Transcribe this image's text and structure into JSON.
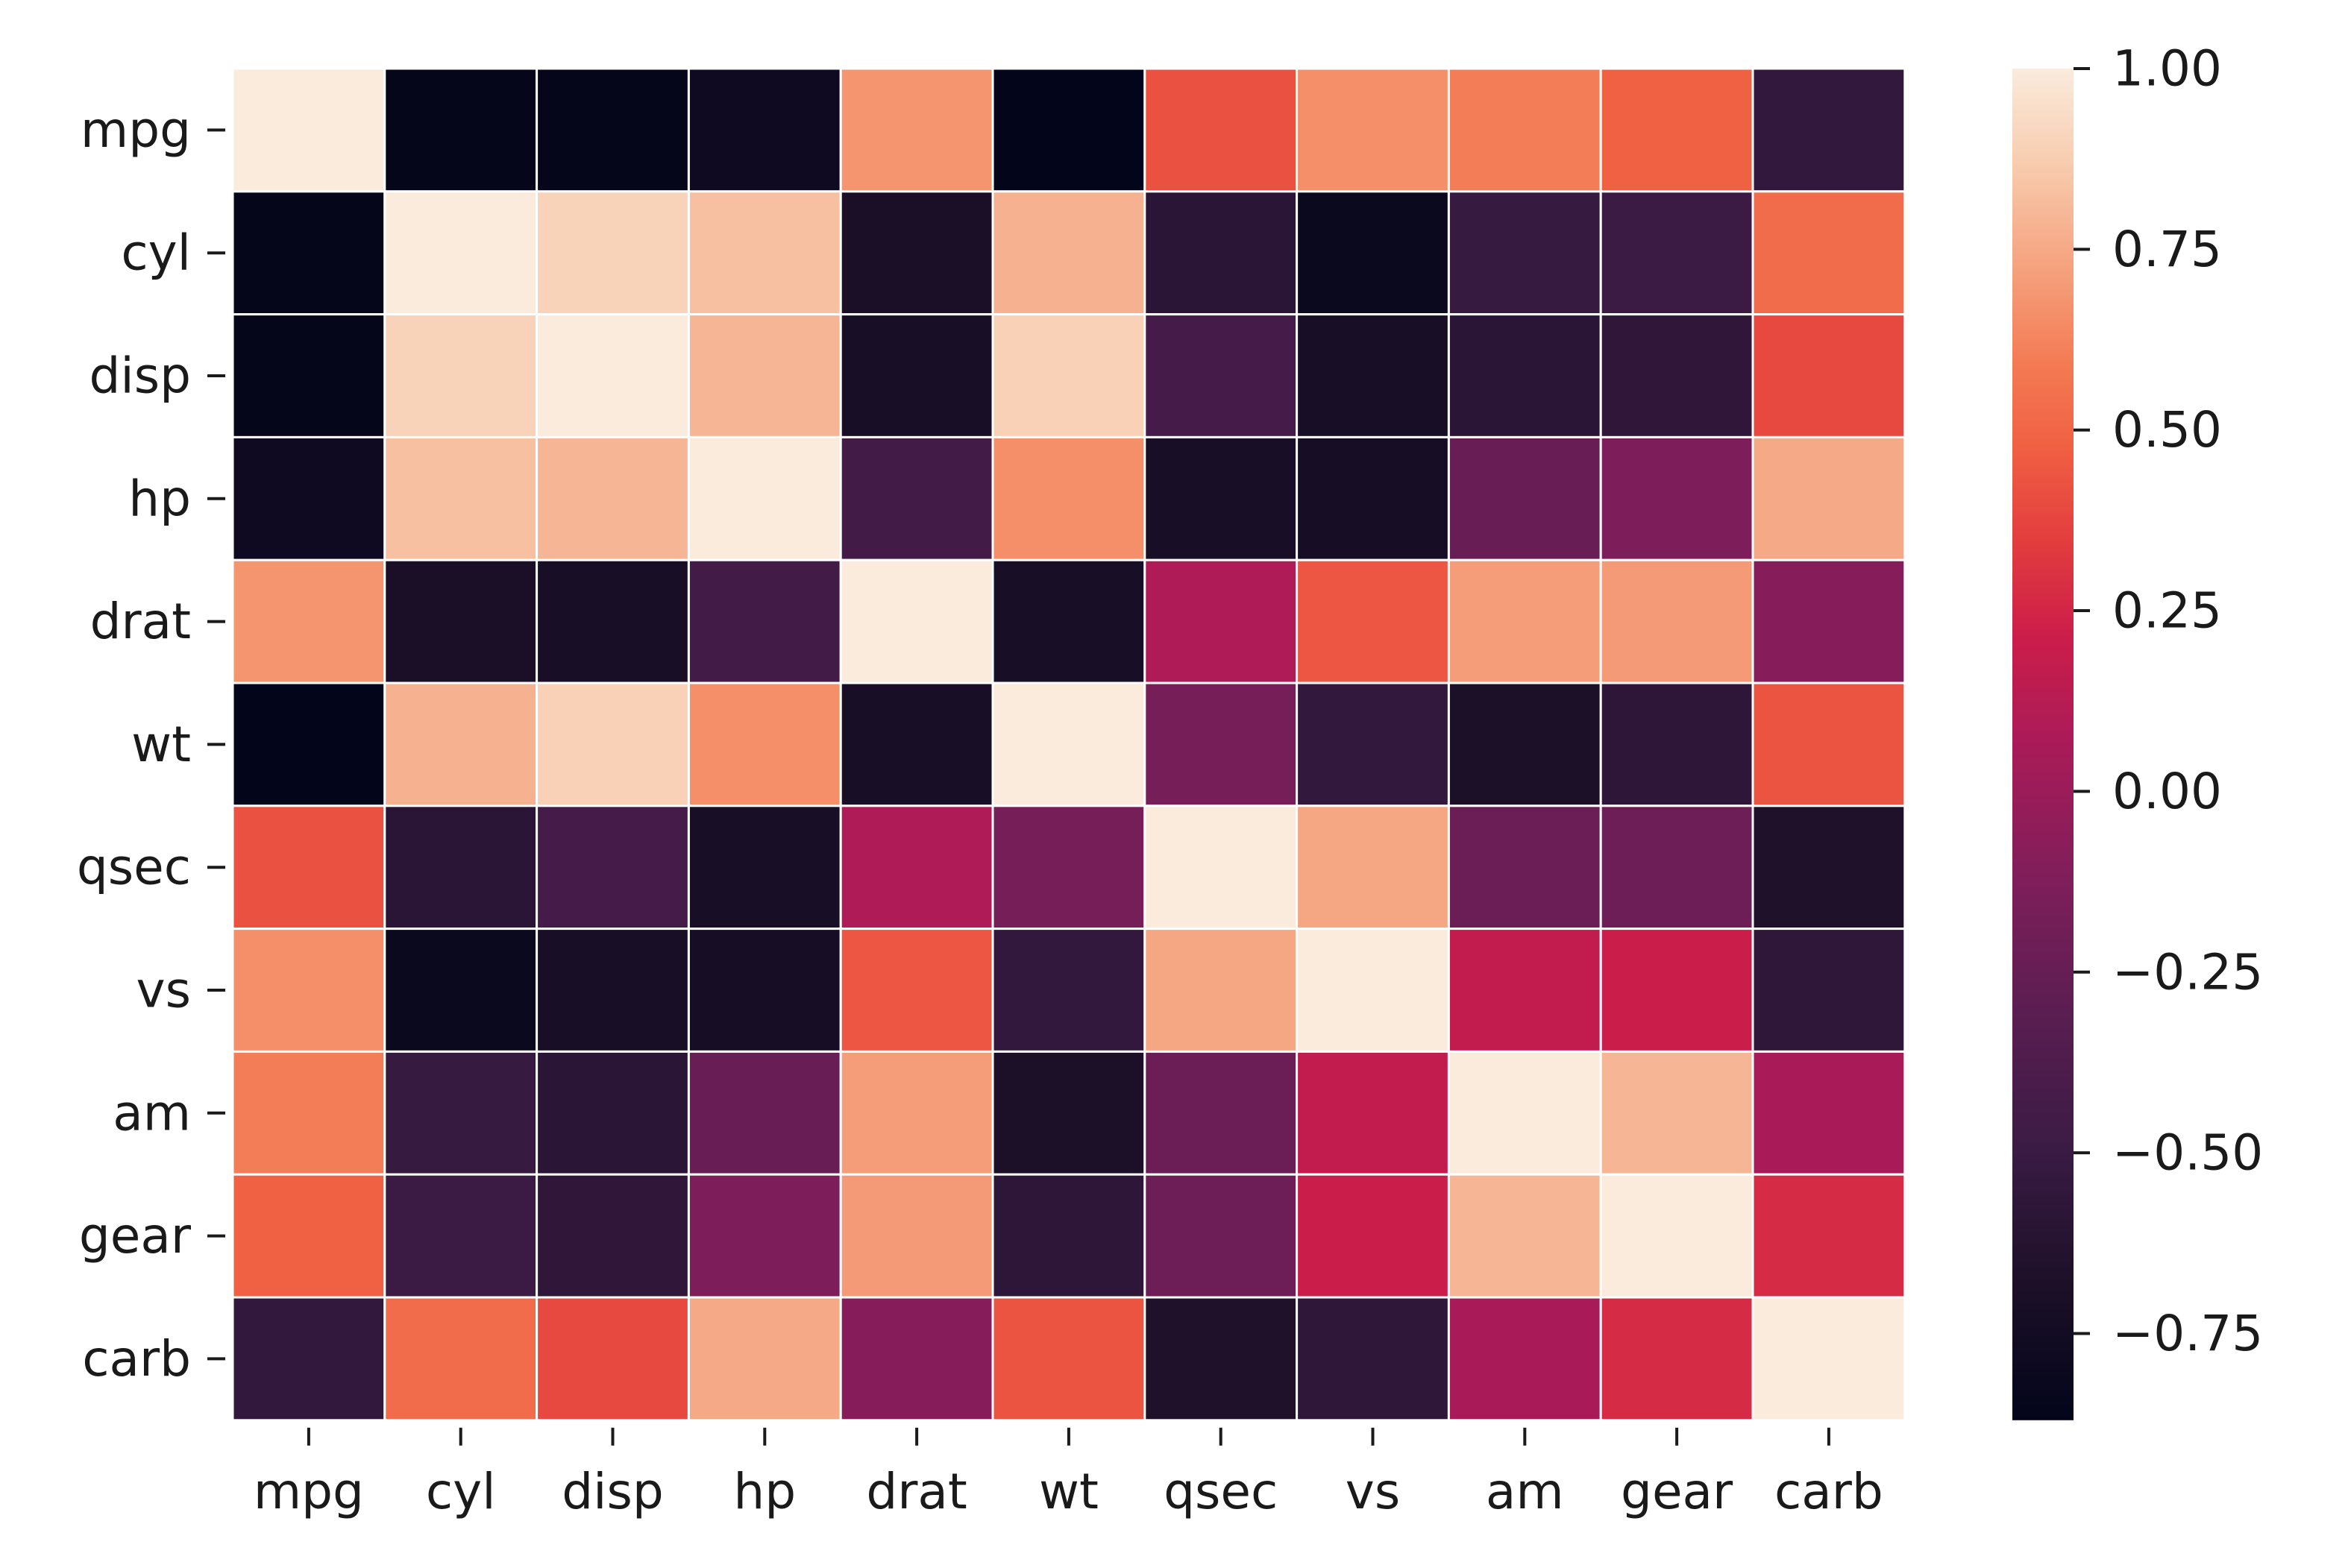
{
  "chart_data": {
    "type": "heatmap",
    "title": "",
    "xlabel": "",
    "ylabel": "",
    "x_categories": [
      "mpg",
      "cyl",
      "disp",
      "hp",
      "drat",
      "wt",
      "qsec",
      "vs",
      "am",
      "gear",
      "carb"
    ],
    "y_categories": [
      "mpg",
      "cyl",
      "disp",
      "hp",
      "drat",
      "wt",
      "qsec",
      "vs",
      "am",
      "gear",
      "carb"
    ],
    "values": [
      [
        1.0,
        -0.85,
        -0.85,
        -0.78,
        0.68,
        -0.87,
        0.42,
        0.66,
        0.6,
        0.48,
        -0.55
      ],
      [
        -0.85,
        1.0,
        0.9,
        0.83,
        -0.7,
        0.78,
        -0.59,
        -0.81,
        -0.52,
        -0.49,
        0.53
      ],
      [
        -0.85,
        0.9,
        1.0,
        0.79,
        -0.71,
        0.89,
        -0.43,
        -0.71,
        -0.59,
        -0.56,
        0.39
      ],
      [
        -0.78,
        0.83,
        0.79,
        1.0,
        -0.45,
        0.66,
        -0.71,
        -0.72,
        -0.24,
        -0.13,
        0.75
      ],
      [
        0.68,
        -0.7,
        -0.71,
        -0.45,
        1.0,
        -0.71,
        0.09,
        0.44,
        0.71,
        0.7,
        -0.09
      ],
      [
        -0.87,
        0.78,
        0.89,
        0.66,
        -0.71,
        1.0,
        -0.17,
        -0.55,
        -0.69,
        -0.58,
        0.43
      ],
      [
        0.42,
        -0.59,
        -0.43,
        -0.71,
        0.09,
        -0.17,
        1.0,
        0.74,
        -0.23,
        -0.21,
        -0.66
      ],
      [
        0.66,
        -0.81,
        -0.71,
        -0.72,
        0.44,
        -0.55,
        0.74,
        1.0,
        0.17,
        0.21,
        -0.57
      ],
      [
        0.6,
        -0.52,
        -0.59,
        -0.24,
        0.71,
        -0.69,
        -0.23,
        0.17,
        1.0,
        0.79,
        0.06
      ],
      [
        0.48,
        -0.49,
        -0.56,
        -0.13,
        0.7,
        -0.58,
        -0.21,
        0.21,
        0.79,
        1.0,
        0.27
      ],
      [
        -0.55,
        0.53,
        0.39,
        0.75,
        -0.09,
        0.43,
        -0.66,
        -0.57,
        0.06,
        0.27,
        1.0
      ]
    ],
    "colorbar": {
      "min": -0.87,
      "max": 1.0,
      "ticks": [
        1.0,
        0.75,
        0.5,
        0.25,
        0.0,
        -0.25,
        -0.5,
        -0.75
      ],
      "tick_labels": [
        "1.00",
        "0.75",
        "0.50",
        "0.25",
        "0.00",
        "−0.25",
        "−0.50",
        "−0.75"
      ],
      "colormap": "rocket",
      "stops": [
        {
          "v": 0.0,
          "c": "#03051a"
        },
        {
          "v": 0.1,
          "c": "#1c1028"
        },
        {
          "v": 0.2,
          "c": "#3a1b44"
        },
        {
          "v": 0.3,
          "c": "#5a1e51"
        },
        {
          "v": 0.4,
          "c": "#7f1e5a"
        },
        {
          "v": 0.5,
          "c": "#a91b58"
        },
        {
          "v": 0.58,
          "c": "#cc1d4a"
        },
        {
          "v": 0.65,
          "c": "#e33d3e"
        },
        {
          "v": 0.72,
          "c": "#f06043"
        },
        {
          "v": 0.78,
          "c": "#f37a53"
        },
        {
          "v": 0.85,
          "c": "#f5a07c"
        },
        {
          "v": 0.92,
          "c": "#f7c7a8"
        },
        {
          "v": 1.0,
          "c": "#faebdd"
        }
      ]
    },
    "cell_separator_color": "#ffffff",
    "legend": "colorbar-right",
    "grid": false
  }
}
